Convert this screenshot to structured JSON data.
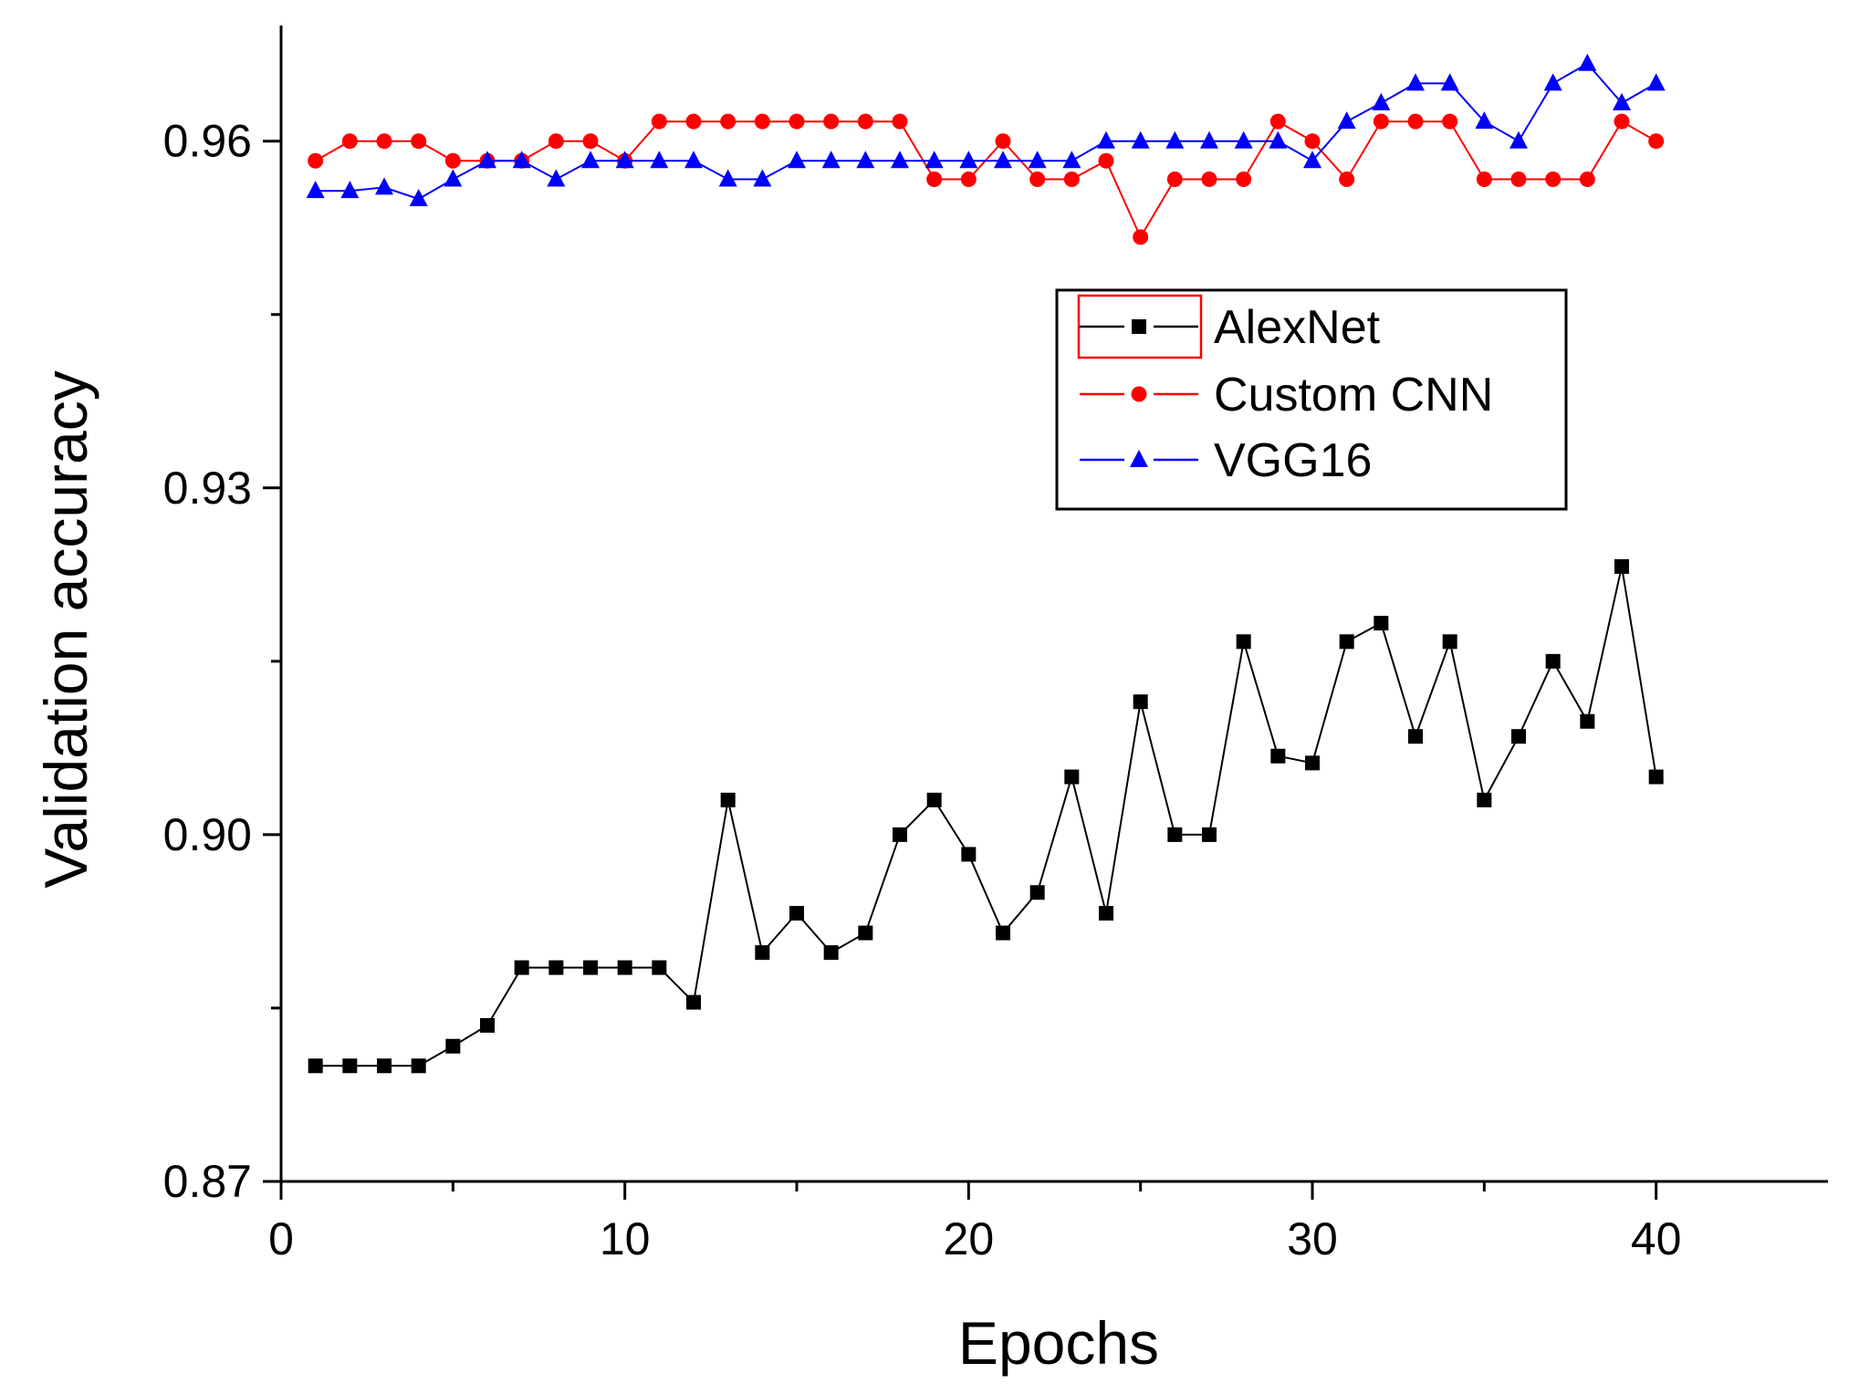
{
  "chart_data": {
    "type": "line",
    "title": "",
    "xlabel": "Epochs",
    "ylabel": "Validation accuracy",
    "xlim": [
      0,
      45
    ],
    "ylim": [
      0.87,
      0.97
    ],
    "x_ticks": [
      0,
      10,
      20,
      30,
      40
    ],
    "x_tick_labels": [
      "0",
      "10",
      "20",
      "30",
      "40"
    ],
    "y_ticks": [
      0.87,
      0.9,
      0.93,
      0.96
    ],
    "y_tick_labels": [
      "0.87",
      "0.90",
      "0.93",
      "0.96"
    ],
    "grid": false,
    "legend_position": "top-right",
    "x": [
      1,
      2,
      3,
      4,
      5,
      6,
      7,
      8,
      9,
      10,
      11,
      12,
      13,
      14,
      15,
      16,
      17,
      18,
      19,
      20,
      21,
      22,
      23,
      24,
      25,
      26,
      27,
      28,
      29,
      30,
      31,
      32,
      33,
      34,
      35,
      36,
      37,
      38,
      39,
      40
    ],
    "series": [
      {
        "name": "AlexNet",
        "color": "#000000",
        "marker": "square",
        "values": [
          0.88,
          0.88,
          0.88,
          0.88,
          0.8817,
          0.8835,
          0.8885,
          0.8885,
          0.8885,
          0.8885,
          0.8885,
          0.8855,
          0.903,
          0.8898,
          0.8932,
          0.8898,
          0.8915,
          0.9,
          0.903,
          0.8983,
          0.8915,
          0.895,
          0.905,
          0.8932,
          0.9115,
          0.9,
          0.9,
          0.9167,
          0.9068,
          0.9062,
          0.9167,
          0.9183,
          0.9085,
          0.9167,
          0.903,
          0.9085,
          0.915,
          0.9098,
          0.9232,
          0.905
        ]
      },
      {
        "name": "Custom CNN",
        "color": "#ff0000",
        "marker": "circle",
        "values": [
          0.9583,
          0.96,
          0.96,
          0.96,
          0.9583,
          0.9583,
          0.9583,
          0.96,
          0.96,
          0.9583,
          0.9617,
          0.9617,
          0.9617,
          0.9617,
          0.9617,
          0.9617,
          0.9617,
          0.9617,
          0.9567,
          0.9567,
          0.96,
          0.9567,
          0.9567,
          0.9583,
          0.9517,
          0.9567,
          0.9567,
          0.9567,
          0.9617,
          0.96,
          0.9567,
          0.9617,
          0.9617,
          0.9617,
          0.9567,
          0.9567,
          0.9567,
          0.9567,
          0.9617,
          0.96
        ]
      },
      {
        "name": "VGG16",
        "color": "#0000ff",
        "marker": "triangle",
        "values": [
          0.9557,
          0.9557,
          0.956,
          0.955,
          0.9567,
          0.9583,
          0.9583,
          0.9567,
          0.9583,
          0.9583,
          0.9583,
          0.9583,
          0.9567,
          0.9567,
          0.9583,
          0.9583,
          0.9583,
          0.9583,
          0.9583,
          0.9583,
          0.9583,
          0.9583,
          0.9583,
          0.96,
          0.96,
          0.96,
          0.96,
          0.96,
          0.96,
          0.9583,
          0.9617,
          0.9633,
          0.965,
          0.965,
          0.9617,
          0.96,
          0.965,
          0.9667,
          0.9633,
          0.965
        ]
      }
    ]
  }
}
